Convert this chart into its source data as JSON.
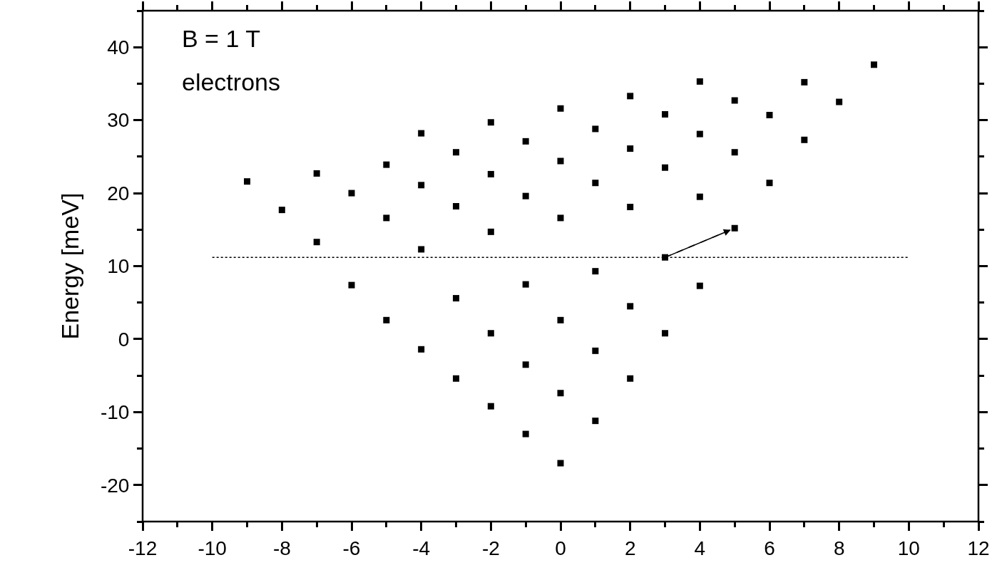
{
  "chart_data": {
    "type": "scatter",
    "ylabel": "Energy [meV]",
    "annotations": [
      "B = 1 T",
      "electrons"
    ],
    "xlim": [
      -12,
      12
    ],
    "xticks": [
      -12,
      -10,
      -8,
      -6,
      -4,
      -2,
      0,
      2,
      4,
      6,
      8,
      10,
      12
    ],
    "ylim": [
      -25,
      45
    ],
    "yticks": [
      -20,
      -10,
      0,
      10,
      20,
      30,
      40
    ],
    "grid": false,
    "marker": "square",
    "series": [
      {
        "color": "#000000",
        "x": [
          -9,
          -8,
          -7,
          -7,
          -6,
          -6,
          -5,
          -5,
          -5,
          -4,
          -4,
          -4,
          -4,
          -3,
          -3,
          -3,
          -3,
          -2,
          -2,
          -2,
          -2,
          -2,
          -1,
          -1,
          -1,
          -1,
          -1,
          0,
          0,
          0,
          0,
          0,
          0,
          1,
          1,
          1,
          1,
          1,
          2,
          2,
          2,
          2,
          2,
          3,
          3,
          3,
          3,
          4,
          4,
          4,
          4,
          5,
          5,
          5,
          6,
          6,
          7,
          7,
          8,
          9
        ],
        "values": [
          21.6,
          17.7,
          22.7,
          13.3,
          20,
          7.4,
          23.9,
          16.6,
          2.6,
          28.2,
          21.1,
          12.3,
          -1.4,
          25.6,
          18.2,
          5.6,
          -5.4,
          29.7,
          22.6,
          14.7,
          0.8,
          -9.2,
          27.1,
          19.6,
          7.5,
          -3.5,
          -13,
          31.6,
          24.4,
          16.6,
          2.6,
          -7.4,
          -17,
          28.8,
          21.4,
          9.3,
          -1.6,
          -11.2,
          33.3,
          26.1,
          18.1,
          4.5,
          -5.4,
          30.8,
          23.5,
          11.2,
          0.8,
          35.3,
          28.1,
          19.5,
          7.3,
          32.7,
          25.6,
          15.2,
          30.7,
          21.4,
          35.2,
          27.3,
          32.5,
          37.6
        ]
      },
      {
        "type": "line",
        "line_style": "dotted",
        "marker": "none",
        "color": "#000000",
        "x": [
          -10,
          10
        ],
        "values": [
          11.2,
          11.2
        ]
      },
      {
        "type": "line",
        "line_style": "dashed",
        "marker": "none",
        "color": "#000000",
        "x": [
          3,
          5
        ],
        "values": [
          11.2,
          15.2
        ]
      }
    ]
  }
}
